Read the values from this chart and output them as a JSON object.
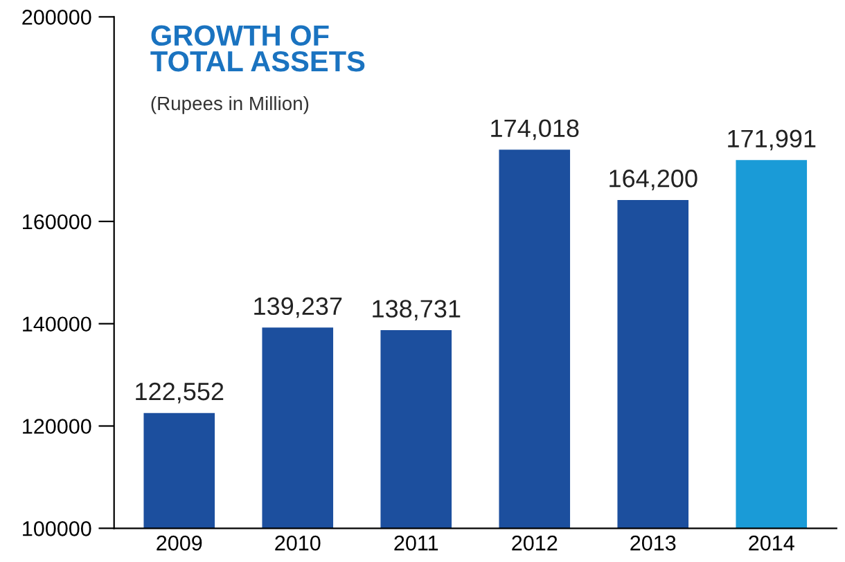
{
  "chart_data": {
    "type": "bar",
    "title": "GROWTH OF\nTOTAL ASSETS",
    "subtitle": "(Rupees in Million)",
    "categories": [
      "2009",
      "2010",
      "2011",
      "2012",
      "2013",
      "2014"
    ],
    "values": [
      122552,
      139237,
      138731,
      174018,
      164200,
      171991
    ],
    "value_labels": [
      "122,552",
      "139,237",
      "138,731",
      "174,018",
      "164,200",
      "171,991"
    ],
    "colors": [
      "#1c4f9e",
      "#1c4f9e",
      "#1c4f9e",
      "#1c4f9e",
      "#1c4f9e",
      "#1a9bd7"
    ],
    "ylim": [
      100000,
      200000
    ],
    "yticks": [
      100000,
      120000,
      140000,
      160000,
      200000
    ],
    "grid": false,
    "legend": false
  }
}
